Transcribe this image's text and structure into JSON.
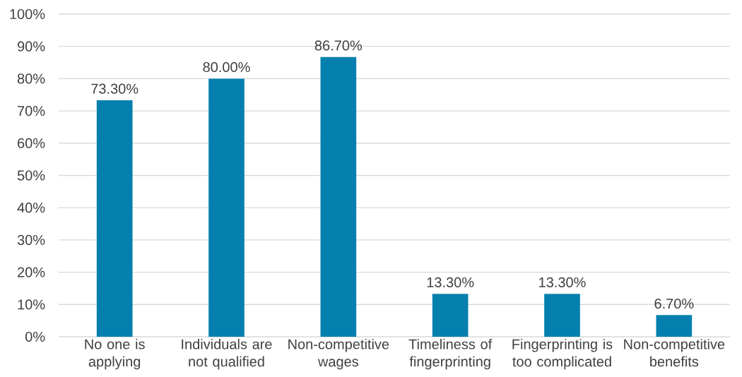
{
  "chart_data": {
    "type": "bar",
    "categories": [
      "No one is applying",
      "Individuals are not qualified",
      "Non-competitive wages",
      "Timeliness of fingerprinting",
      "Fingerprinting is too complicated",
      "Non-competitive benefits"
    ],
    "values": [
      73.3,
      80.0,
      86.7,
      13.3,
      13.3,
      6.7
    ],
    "value_labels": [
      "73.30%",
      "80.00%",
      "86.70%",
      "13.30%",
      "13.30%",
      "6.70%"
    ],
    "color": "#0580ae",
    "ylim": [
      0,
      100
    ],
    "yticks": [
      {
        "value": 0,
        "label": "0%"
      },
      {
        "value": 10,
        "label": "10%"
      },
      {
        "value": 20,
        "label": "20%"
      },
      {
        "value": 30,
        "label": "30%"
      },
      {
        "value": 40,
        "label": "40%"
      },
      {
        "value": 50,
        "label": "50%"
      },
      {
        "value": 60,
        "label": "60%"
      },
      {
        "value": 70,
        "label": "70%"
      },
      {
        "value": 80,
        "label": "80%"
      },
      {
        "value": 90,
        "label": "90%"
      },
      {
        "value": 100,
        "label": "100%"
      }
    ],
    "grid": "y"
  }
}
